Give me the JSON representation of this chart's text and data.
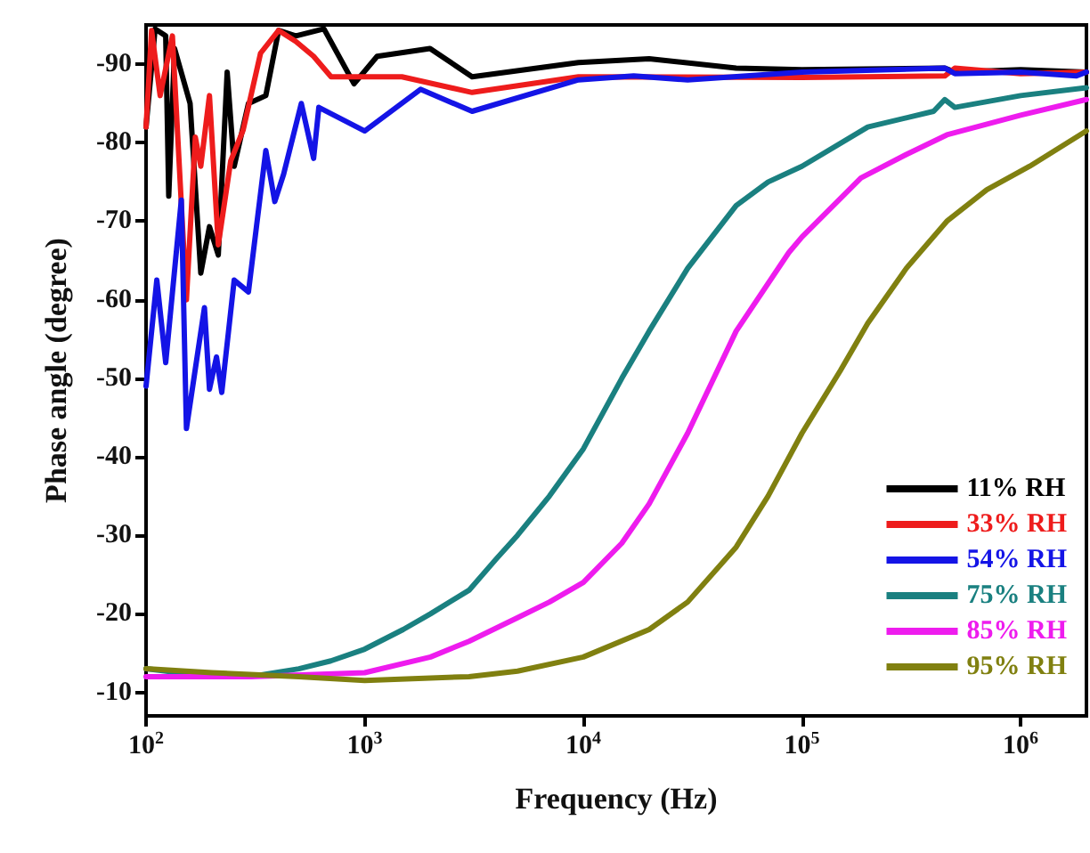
{
  "chart_data": {
    "type": "line",
    "xlabel": "Frequency (Hz)",
    "ylabel": "Phase angle (degree)",
    "log": "x",
    "xlim": [
      100,
      2000000
    ],
    "ylim": [
      -7,
      -95
    ],
    "xticks": [
      {
        "value": 100,
        "label": "10$^{2}$"
      },
      {
        "value": 1000,
        "label": "10$^{3}$"
      },
      {
        "value": 10000,
        "label": "10$^{4}$"
      },
      {
        "value": 100000,
        "label": "10$^{5}$"
      },
      {
        "value": 1000000,
        "label": "10$^{6}$"
      }
    ],
    "yticks": [
      -10,
      -20,
      -30,
      -40,
      -50,
      -60,
      -70,
      -80,
      -90
    ],
    "grid": false,
    "legend": "bottom right",
    "marker": "none",
    "line_style": "solid",
    "series": [
      {
        "name": "11% RH",
        "color": "#000000",
        "x": [
          100,
          110,
          123,
          127,
          135,
          159,
          178,
          195,
          214,
          235,
          253,
          294,
          353,
          404,
          484,
          651,
          894,
          1140,
          1990,
          3100,
          9500,
          20000,
          50000,
          100000,
          450000,
          500000,
          1000000,
          2000000
        ],
        "values": [
          -82,
          -94.5,
          -93.6,
          -73.2,
          -92,
          -85,
          -63.4,
          -69.3,
          -65.7,
          -89,
          -77,
          -85,
          -86,
          -94.3,
          -93.6,
          -94.5,
          -87.5,
          -91,
          -92,
          -88.4,
          -90.2,
          -90.7,
          -89.5,
          -89.3,
          -89.5,
          -89,
          -89.3,
          -89
        ]
      },
      {
        "name": "33% RH",
        "color": "#ee1c1c",
        "x": [
          100,
          106,
          116,
          132,
          153,
          168,
          178,
          195,
          214,
          244,
          278,
          334,
          404,
          484,
          584,
          702,
          1480,
          3100,
          9500,
          100000,
          450000,
          500000,
          1000000,
          2000000
        ],
        "values": [
          -82,
          -94.3,
          -86,
          -93.6,
          -60,
          -80.7,
          -77,
          -86,
          -67,
          -77.7,
          -81.6,
          -91.4,
          -94.3,
          -92.9,
          -91,
          -88.4,
          -88.4,
          -86.4,
          -88.4,
          -88.3,
          -88.5,
          -89.5,
          -88.8,
          -89
        ]
      },
      {
        "name": "54% RH",
        "color": "#1414e6",
        "x": [
          100,
          112,
          123,
          145,
          153,
          185,
          195,
          210,
          222,
          253,
          294,
          353,
          388,
          426,
          513,
          584,
          617,
          1000,
          1800,
          3100,
          9500,
          17000,
          30000,
          100000,
          450000,
          500000,
          1000000,
          1800000,
          2000000
        ],
        "values": [
          -49,
          -62.5,
          -52,
          -72.7,
          -43.6,
          -59,
          -48.6,
          -52.7,
          -48.2,
          -62.5,
          -61,
          -79,
          -72.5,
          -76,
          -85,
          -78,
          -84.5,
          -81.5,
          -86.8,
          -84,
          -88,
          -88.5,
          -88,
          -89,
          -89.5,
          -88.8,
          -89,
          -88.5,
          -89
        ]
      },
      {
        "name": "75% RH",
        "color": "#1a8080",
        "x": [
          100,
          200,
          300,
          500,
          700,
          1000,
          1500,
          2000,
          3000,
          4000,
          5000,
          7000,
          10000,
          15000,
          20000,
          30000,
          50000,
          70000,
          100000,
          200000,
          400000,
          450000,
          500000,
          1000000,
          2000000
        ],
        "values": [
          -13,
          -12,
          -12,
          -13,
          -14,
          -15.5,
          -18,
          -20,
          -23,
          -27,
          -30,
          -35,
          -41,
          -50,
          -56,
          -64,
          -72,
          -75,
          -77,
          -82,
          -84,
          -85.5,
          -84.5,
          -86,
          -87
        ]
      },
      {
        "name": "85% RH",
        "color": "#ee1cee",
        "x": [
          100,
          300,
          1000,
          2000,
          3000,
          5000,
          7000,
          10000,
          15000,
          20000,
          30000,
          50000,
          87000,
          100000,
          186000,
          300000,
          460000,
          1000000,
          2000000
        ],
        "values": [
          -12,
          -12,
          -12.5,
          -14.5,
          -16.5,
          -19.5,
          -21.5,
          -24,
          -29,
          -34,
          -43,
          -56,
          -66,
          -68,
          -75.5,
          -78.5,
          -81,
          -83.5,
          -85.5
        ]
      },
      {
        "name": "95% RH",
        "color": "#808010",
        "x": [
          100,
          200,
          500,
          1000,
          3000,
          5000,
          10000,
          20000,
          30000,
          50000,
          70000,
          100000,
          150000,
          200000,
          300000,
          460000,
          700000,
          1100000,
          2000000
        ],
        "values": [
          -13,
          -12.5,
          -12,
          -11.5,
          -12,
          -12.7,
          -14.5,
          -18,
          -21.5,
          -28.5,
          -35,
          -43,
          -51,
          -57,
          -64,
          -70,
          -74,
          -77,
          -81.5
        ]
      }
    ]
  }
}
